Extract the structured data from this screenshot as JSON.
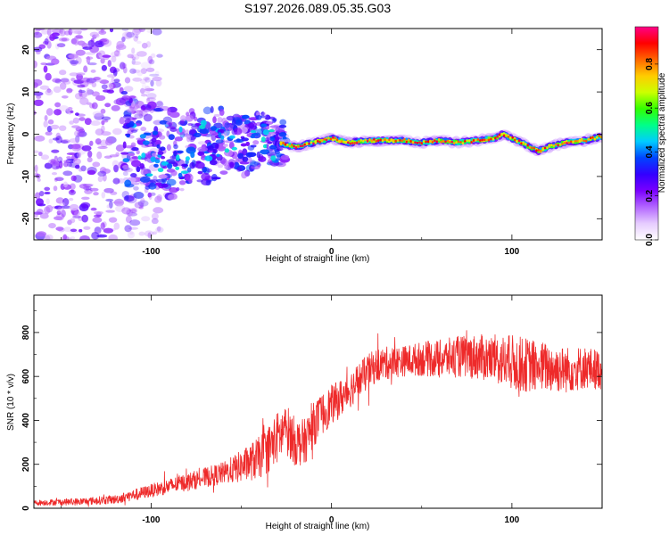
{
  "title": "S197.2026.089.05.35.G03",
  "chart_data": [
    {
      "type": "heatmap",
      "xlabel": "Height of straight line (km)",
      "ylabel": "Frequency (Hz)",
      "xlim": [
        -165,
        150
      ],
      "ylim": [
        -25,
        25
      ],
      "xticks": [
        -100,
        0,
        100
      ],
      "yticks": [
        -20,
        -10,
        0,
        10,
        20
      ],
      "colorbar": {
        "label": "Normalized spectral amplitude",
        "ticks": [
          0.0,
          0.2,
          0.4,
          0.6,
          0.8
        ],
        "range": [
          0,
          0.97
        ],
        "colors": [
          "#ffffff",
          "#e6ccff",
          "#b366ff",
          "#7a00ff",
          "#3300ff",
          "#0044ff",
          "#00ccff",
          "#00ff88",
          "#33ff00",
          "#ccff00",
          "#ffcc00",
          "#ff6600",
          "#ff0000",
          "#ff0088"
        ]
      },
      "ridge": {
        "x": [
          -130,
          -120,
          -110,
          -100,
          -90,
          -80,
          -70,
          -60,
          -50,
          -40,
          -30,
          -20,
          -10,
          0,
          10,
          20,
          30,
          40,
          50,
          60,
          70,
          80,
          90,
          95,
          100,
          110,
          115,
          120,
          130,
          140,
          150
        ],
        "freq": [
          -1,
          -2,
          -3,
          -4,
          -5,
          -4,
          -3,
          -2,
          -3,
          -1,
          -2,
          -3,
          -2,
          -1,
          -2,
          -1.5,
          -1.5,
          -1.5,
          -2,
          -1.5,
          -2,
          -1.5,
          -1,
          0,
          -1,
          -3,
          -4,
          -3,
          -2,
          -1.5,
          -0.5
        ]
      },
      "scatter_region": {
        "x_range": [
          -165,
          -115
        ],
        "freq_range": [
          -25,
          25
        ]
      },
      "noisy_region": {
        "x_range": [
          -115,
          -25
        ],
        "freq_range": [
          -13,
          13
        ]
      }
    },
    {
      "type": "line",
      "xlabel": "Height of straight line (km)",
      "ylabel": "SNR (10 * v/v)",
      "xlim": [
        -165,
        150
      ],
      "ylim": [
        0,
        970
      ],
      "xticks": [
        -100,
        0,
        100
      ],
      "yticks": [
        0,
        200,
        400,
        600,
        800
      ],
      "color": "#ee2a2a",
      "trend": {
        "x": [
          -165,
          -140,
          -120,
          -110,
          -100,
          -90,
          -80,
          -70,
          -60,
          -50,
          -40,
          -35,
          -30,
          -25,
          -20,
          -15,
          -10,
          -5,
          0,
          5,
          10,
          15,
          20,
          25,
          30,
          40,
          50,
          60,
          70,
          80,
          90,
          100,
          110,
          120,
          130,
          140,
          150
        ],
        "y": [
          25,
          30,
          40,
          60,
          80,
          100,
          120,
          140,
          160,
          190,
          230,
          270,
          320,
          360,
          300,
          300,
          380,
          430,
          470,
          500,
          540,
          580,
          620,
          650,
          660,
          670,
          680,
          680,
          690,
          690,
          680,
          660,
          650,
          640,
          630,
          640,
          630
        ]
      },
      "noise_amplitude": {
        "x": [
          -165,
          -120,
          -60,
          -30,
          0,
          40,
          90,
          100,
          150
        ],
        "amp": [
          12,
          20,
          50,
          120,
          90,
          70,
          110,
          130,
          90
        ]
      }
    }
  ]
}
